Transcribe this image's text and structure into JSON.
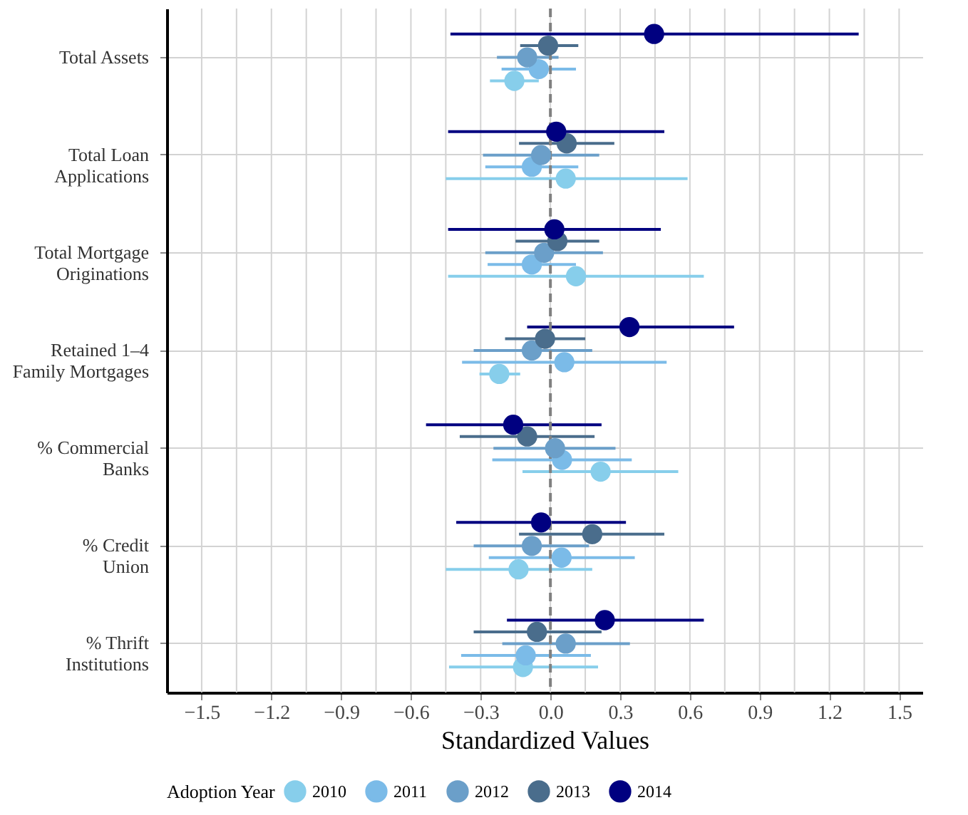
{
  "chart_data": {
    "type": "scatter",
    "orientation": "horizontal",
    "xlabel": "Standardized Values",
    "legend_title": "Adoption Year",
    "legend": "bottom",
    "grid": true,
    "marker": "circle",
    "categories": [
      "Total Assets",
      "Total Loan Applications",
      "Total Mortgage Originations",
      "Retained 1–4 Family Mortgages",
      "% Commercial Banks",
      "% Credit Union",
      "% Thrift Institutions"
    ],
    "xlim": [
      -1.65,
      1.6
    ],
    "xticks": [
      {
        "value": -1.5,
        "label": "−1.5"
      },
      {
        "value": -1.35,
        "label": null
      },
      {
        "value": -1.2,
        "label": "−1.2"
      },
      {
        "value": -1.05,
        "label": null
      },
      {
        "value": -0.9,
        "label": "−0.9"
      },
      {
        "value": -0.75,
        "label": null
      },
      {
        "value": -0.6,
        "label": "−0.6"
      },
      {
        "value": -0.45,
        "label": null
      },
      {
        "value": -0.3,
        "label": "−0.3"
      },
      {
        "value": -0.15,
        "label": null
      },
      {
        "value": 0,
        "label": "0.0"
      },
      {
        "value": 0.15,
        "label": null
      },
      {
        "value": 0.3,
        "label": "0.3"
      },
      {
        "value": 0.45,
        "label": null
      },
      {
        "value": 0.6,
        "label": "0.6"
      },
      {
        "value": 0.75,
        "label": null
      },
      {
        "value": 0.9,
        "label": "0.9"
      },
      {
        "value": 1.05,
        "label": null
      },
      {
        "value": 1.2,
        "label": "1.2"
      },
      {
        "value": 1.35,
        "label": null
      },
      {
        "value": 1.5,
        "label": "1.5"
      }
    ],
    "ref_lines": [
      {
        "axis": "x",
        "value": 0,
        "color": "#808080",
        "line_style": "dashed"
      }
    ],
    "series": [
      {
        "name": "2010",
        "color": "#87ceeb",
        "values": [
          -0.155,
          0.066,
          0.11,
          -0.22,
          0.216,
          -0.137,
          -0.118
        ],
        "errors": [
          [
            -0.26,
            -0.05
          ],
          [
            -0.45,
            0.59
          ],
          [
            -0.44,
            0.66
          ],
          [
            -0.305,
            -0.13
          ],
          [
            -0.12,
            0.55
          ],
          [
            -0.45,
            0.18
          ],
          [
            -0.436,
            0.205
          ]
        ]
      },
      {
        "name": "2011",
        "color": "#7bbbe8",
        "values": [
          -0.05,
          -0.08,
          -0.08,
          0.06,
          0.05,
          0.048,
          -0.106
        ],
        "errors": [
          [
            -0.21,
            0.11
          ],
          [
            -0.28,
            0.12
          ],
          [
            -0.27,
            0.11
          ],
          [
            -0.38,
            0.5
          ],
          [
            -0.25,
            0.35
          ],
          [
            -0.265,
            0.363
          ],
          [
            -0.384,
            0.174
          ]
        ]
      },
      {
        "name": "2012",
        "color": "#6b9fc9",
        "values": [
          -0.1,
          -0.04,
          -0.027,
          -0.08,
          0.02,
          -0.08,
          0.066
        ],
        "errors": [
          [
            -0.23,
            0.035
          ],
          [
            -0.29,
            0.21
          ],
          [
            -0.28,
            0.226
          ],
          [
            -0.33,
            0.18
          ],
          [
            -0.245,
            0.28
          ],
          [
            -0.33,
            0.166
          ],
          [
            -0.207,
            0.342
          ]
        ]
      },
      {
        "name": "2013",
        "color": "#4a6d8c",
        "values": [
          -0.01,
          0.07,
          0.03,
          -0.023,
          -0.1,
          0.18,
          -0.058
        ],
        "errors": [
          [
            -0.13,
            0.12
          ],
          [
            -0.135,
            0.275
          ],
          [
            -0.15,
            0.21
          ],
          [
            -0.195,
            0.15
          ],
          [
            -0.39,
            0.19
          ],
          [
            -0.135,
            0.49
          ],
          [
            -0.33,
            0.22
          ]
        ]
      },
      {
        "name": "2014",
        "color": "#000080",
        "values": [
          0.446,
          0.025,
          0.017,
          0.34,
          -0.16,
          -0.04,
          0.234
        ],
        "errors": [
          [
            -0.43,
            1.326
          ],
          [
            -0.44,
            0.49
          ],
          [
            -0.44,
            0.475
          ],
          [
            -0.1,
            0.79
          ],
          [
            -0.535,
            0.22
          ],
          [
            -0.405,
            0.325
          ],
          [
            -0.187,
            0.66
          ]
        ]
      }
    ]
  }
}
